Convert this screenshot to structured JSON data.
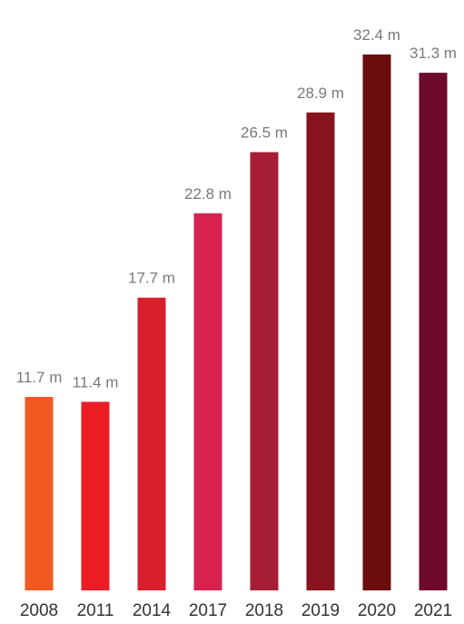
{
  "chart_data": {
    "type": "bar",
    "categories": [
      "2008",
      "2011",
      "2014",
      "2017",
      "2018",
      "2019",
      "2020",
      "2021"
    ],
    "values": [
      11.7,
      11.4,
      17.7,
      22.8,
      26.5,
      28.9,
      32.4,
      31.3
    ],
    "value_labels": [
      "11.7 m",
      "11.4 m",
      "17.7 m",
      "22.8 m",
      "26.5 m",
      "28.9 m",
      "32.4 m",
      "31.3 m"
    ],
    "bar_colors": [
      "#f05a22",
      "#ec1c24",
      "#d91f2d",
      "#d7224e",
      "#a61e35",
      "#86131d",
      "#6b0d0d",
      "#6e0a2d"
    ],
    "title": "",
    "xlabel": "",
    "ylabel": "",
    "ylim": [
      0,
      33.5
    ],
    "grid": false,
    "legend": "none"
  }
}
